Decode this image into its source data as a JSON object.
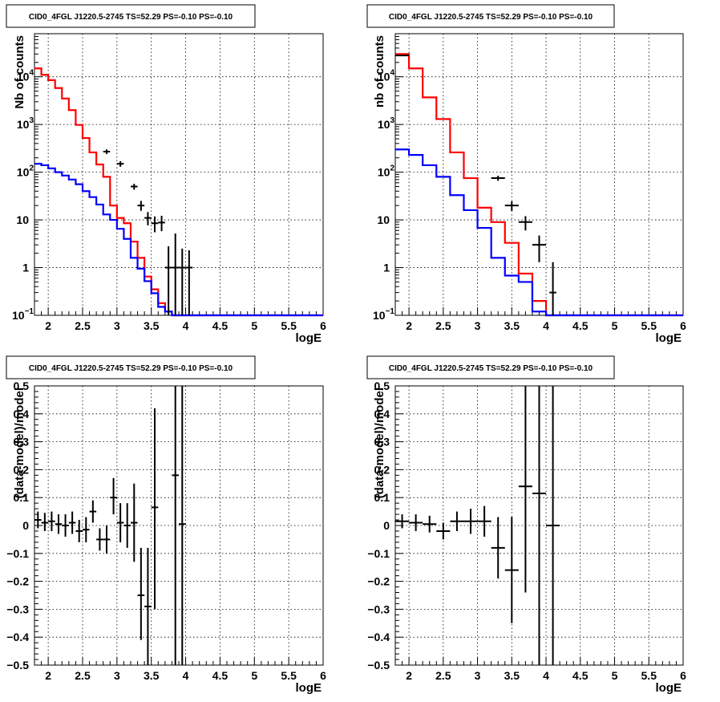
{
  "chart_data": [
    {
      "id": "p1",
      "type": "histogram",
      "title": "CID0_4FGL J1220.5-2745 TS=52.29 PS=-0.10 PS=-0.10",
      "xlabel": "logE",
      "ylabel": "Nb of counts",
      "xlim": [
        1.8,
        6
      ],
      "ylim": [
        0.1,
        80000
      ],
      "yscale": "log",
      "xticks": [
        2,
        2.5,
        3,
        3.5,
        4,
        4.5,
        5,
        5.5,
        6
      ],
      "xtick_labels": [
        "2",
        "2.5",
        "3",
        "3.5",
        "4",
        "4.5",
        "5",
        "5.5",
        "6"
      ],
      "yticks": [
        {
          "v": 0.1,
          "base": "10",
          "exp": "−1"
        },
        {
          "v": 1,
          "label": "1"
        },
        {
          "v": 10,
          "label": "10"
        },
        {
          "v": 100,
          "base": "10",
          "exp": "2"
        },
        {
          "v": 1000,
          "base": "10",
          "exp": "3"
        },
        {
          "v": 10000,
          "base": "10",
          "exp": "4"
        }
      ],
      "grid": true,
      "series": [
        {
          "color": "#ff0000",
          "bin_edges_start": 1.8,
          "bin_width": 0.1,
          "values": [
            15000,
            11000,
            8500,
            5800,
            3500,
            2000,
            980,
            520,
            260,
            145,
            80,
            20,
            11,
            8.5,
            3.5,
            1.6,
            0.65,
            0.35,
            0.18,
            0.12
          ]
        },
        {
          "color": "#0000ff",
          "bin_edges_start": 1.8,
          "bin_width": 0.1,
          "values": [
            150,
            140,
            120,
            100,
            85,
            70,
            56,
            40,
            30,
            21,
            13,
            10,
            6.5,
            4.0,
            1.6,
            0.95,
            0.52,
            0.29,
            0.15,
            0.12
          ]
        }
      ],
      "points": [
        {
          "x": 2.85,
          "y": 270,
          "xerr": 0.05,
          "ylo": 240,
          "yhi": 300
        },
        {
          "x": 3.05,
          "y": 150,
          "xerr": 0.05,
          "ylo": 130,
          "yhi": 170
        },
        {
          "x": 3.25,
          "y": 50,
          "xerr": 0.05,
          "ylo": 43,
          "yhi": 57
        },
        {
          "x": 3.35,
          "y": 20,
          "xerr": 0.05,
          "ylo": 15.5,
          "yhi": 25
        },
        {
          "x": 3.45,
          "y": 11,
          "xerr": 0.05,
          "ylo": 7.7,
          "yhi": 14.6
        },
        {
          "x": 3.55,
          "y": 8.5,
          "xerr": 0.05,
          "ylo": 5.5,
          "yhi": 11.8
        },
        {
          "x": 3.65,
          "y": 8.8,
          "xerr": 0.05,
          "ylo": 5.8,
          "yhi": 12.2
        },
        {
          "x": 3.75,
          "y": 1.0,
          "xerr": 0.05,
          "ylo": 0.1,
          "yhi": 2.8
        },
        {
          "x": 3.85,
          "y": 1.0,
          "xerr": 0.05,
          "ylo": 0.1,
          "yhi": 5.2
        },
        {
          "x": 3.95,
          "y": 1.0,
          "xerr": 0.05,
          "ylo": 0.1,
          "yhi": 2.5
        },
        {
          "x": 4.05,
          "y": 1.0,
          "xerr": 0.05,
          "ylo": 0.1,
          "yhi": 2.3
        }
      ]
    },
    {
      "id": "p2",
      "type": "histogram",
      "title": "CID0_4FGL J1220.5-2745 TS=52.29 PS=-0.10 PS=-0.10",
      "xlabel": "logE",
      "ylabel": "nb of counts",
      "xlim": [
        1.8,
        6
      ],
      "ylim": [
        0.1,
        80000
      ],
      "yscale": "log",
      "xticks": [
        2,
        2.5,
        3,
        3.5,
        4,
        4.5,
        5,
        5.5,
        6
      ],
      "xtick_labels": [
        "2",
        "2.5",
        "3",
        "3.5",
        "4",
        "4.5",
        "5",
        "5.5",
        "6"
      ],
      "yticks": [
        {
          "v": 0.1,
          "base": "10",
          "exp": "−1"
        },
        {
          "v": 1,
          "label": "1"
        },
        {
          "v": 10,
          "label": "10"
        },
        {
          "v": 100,
          "base": "10",
          "exp": "2"
        },
        {
          "v": 1000,
          "base": "10",
          "exp": "3"
        },
        {
          "v": 10000,
          "base": "10",
          "exp": "4"
        }
      ],
      "grid": true,
      "series": [
        {
          "color": "#ff0000",
          "bin_edges_start": 1.8,
          "bin_width": 0.2,
          "values": [
            30000,
            15000,
            3700,
            1300,
            260,
            75,
            18,
            9,
            3.3,
            0.75,
            0.2
          ]
        },
        {
          "color": "#0000ff",
          "bin_edges_start": 1.8,
          "bin_width": 0.2,
          "values": [
            300,
            230,
            140,
            80,
            33,
            16,
            6.8,
            1.6,
            0.68,
            0.5,
            0.12
          ]
        }
      ],
      "points": [
        {
          "x": 1.9,
          "y": 28000,
          "xerr": 0.1,
          "ylo": 27000,
          "yhi": 29000
        },
        {
          "x": 3.3,
          "y": 75,
          "xerr": 0.1,
          "ylo": 66,
          "yhi": 84
        },
        {
          "x": 3.5,
          "y": 20,
          "xerr": 0.1,
          "ylo": 15.5,
          "yhi": 24.5
        },
        {
          "x": 3.7,
          "y": 9,
          "xerr": 0.1,
          "ylo": 6,
          "yhi": 12
        },
        {
          "x": 3.9,
          "y": 3.0,
          "xerr": 0.1,
          "ylo": 1.3,
          "yhi": 4.7
        },
        {
          "x": 4.1,
          "y": 0.3,
          "xerr": 0.05,
          "ylo": 0.1,
          "yhi": 1.3
        }
      ]
    },
    {
      "id": "p3",
      "type": "scatter",
      "title": "CID0_4FGL J1220.5-2745 TS=52.29 PS=-0.10 PS=-0.10",
      "xlabel": "logE",
      "ylabel": "(data-model)/model",
      "xlim": [
        1.8,
        6
      ],
      "ylim": [
        -0.5,
        0.5
      ],
      "yscale": "linear",
      "xticks": [
        2,
        2.5,
        3,
        3.5,
        4,
        4.5,
        5,
        5.5,
        6
      ],
      "xtick_labels": [
        "2",
        "2.5",
        "3",
        "3.5",
        "4",
        "4.5",
        "5",
        "5.5",
        "6"
      ],
      "yticks": [
        {
          "v": -0.5,
          "label": "−0.5"
        },
        {
          "v": -0.4,
          "label": "−0.4"
        },
        {
          "v": -0.3,
          "label": "−0.3"
        },
        {
          "v": -0.2,
          "label": "−0.2"
        },
        {
          "v": -0.1,
          "label": "−0.1"
        },
        {
          "v": 0,
          "label": "0"
        },
        {
          "v": 0.1,
          "label": "0.1"
        },
        {
          "v": 0.2,
          "label": "0.2"
        },
        {
          "v": 0.3,
          "label": "0.3"
        },
        {
          "v": 0.4,
          "label": "0.4"
        },
        {
          "v": 0.5,
          "label": "0.5"
        }
      ],
      "grid": true,
      "points": [
        {
          "x": 1.85,
          "y": 0.02,
          "xerr": 0.05,
          "ylo": -0.01,
          "yhi": 0.05
        },
        {
          "x": 1.95,
          "y": 0.01,
          "xerr": 0.05,
          "ylo": -0.02,
          "yhi": 0.045
        },
        {
          "x": 2.05,
          "y": 0.015,
          "xerr": 0.05,
          "ylo": -0.02,
          "yhi": 0.05
        },
        {
          "x": 2.15,
          "y": 0.005,
          "xerr": 0.05,
          "ylo": -0.03,
          "yhi": 0.04
        },
        {
          "x": 2.25,
          "y": 0.0,
          "xerr": 0.05,
          "ylo": -0.04,
          "yhi": 0.04
        },
        {
          "x": 2.35,
          "y": 0.01,
          "xerr": 0.05,
          "ylo": -0.03,
          "yhi": 0.05
        },
        {
          "x": 2.45,
          "y": -0.02,
          "xerr": 0.05,
          "ylo": -0.06,
          "yhi": 0.02
        },
        {
          "x": 2.55,
          "y": -0.015,
          "xerr": 0.05,
          "ylo": -0.06,
          "yhi": 0.03
        },
        {
          "x": 2.65,
          "y": 0.05,
          "xerr": 0.05,
          "ylo": 0.01,
          "yhi": 0.09
        },
        {
          "x": 2.75,
          "y": -0.05,
          "xerr": 0.05,
          "ylo": -0.09,
          "yhi": -0.01
        },
        {
          "x": 2.85,
          "y": -0.05,
          "xerr": 0.05,
          "ylo": -0.1,
          "yhi": 0.0
        },
        {
          "x": 2.95,
          "y": 0.1,
          "xerr": 0.05,
          "ylo": 0.04,
          "yhi": 0.17
        },
        {
          "x": 3.05,
          "y": 0.01,
          "xerr": 0.05,
          "ylo": -0.06,
          "yhi": 0.08
        },
        {
          "x": 3.15,
          "y": 0.0,
          "xerr": 0.05,
          "ylo": -0.08,
          "yhi": 0.08
        },
        {
          "x": 3.25,
          "y": 0.01,
          "xerr": 0.05,
          "ylo": -0.13,
          "yhi": 0.15
        },
        {
          "x": 3.35,
          "y": -0.25,
          "xerr": 0.05,
          "ylo": -0.41,
          "yhi": -0.08
        },
        {
          "x": 3.45,
          "y": -0.29,
          "xerr": 0.05,
          "ylo": -0.5,
          "yhi": -0.08
        },
        {
          "x": 3.55,
          "y": 0.065,
          "xerr": 0.05,
          "ylo": -0.3,
          "yhi": 0.42
        },
        {
          "x": 3.85,
          "y": 0.18,
          "xerr": 0.05,
          "ylo": -0.5,
          "yhi": 0.5
        },
        {
          "x": 3.95,
          "y": 0.005,
          "xerr": 0.05,
          "ylo": -0.5,
          "yhi": 0.5
        }
      ]
    },
    {
      "id": "p4",
      "type": "scatter",
      "title": "CID0_4FGL J1220.5-2745 TS=52.29 PS=-0.10 PS=-0.10",
      "xlabel": "logE",
      "ylabel": "(data-model)/model",
      "xlim": [
        1.8,
        6
      ],
      "ylim": [
        -0.5,
        0.5
      ],
      "yscale": "linear",
      "xticks": [
        2,
        2.5,
        3,
        3.5,
        4,
        4.5,
        5,
        5.5,
        6
      ],
      "xtick_labels": [
        "2",
        "2.5",
        "3",
        "3.5",
        "4",
        "4.5",
        "5",
        "5.5",
        "6"
      ],
      "yticks": [
        {
          "v": -0.5,
          "label": "−0.5"
        },
        {
          "v": -0.4,
          "label": "−0.4"
        },
        {
          "v": -0.3,
          "label": "−0.3"
        },
        {
          "v": -0.2,
          "label": "−0.2"
        },
        {
          "v": -0.1,
          "label": "−0.1"
        },
        {
          "v": 0,
          "label": "0"
        },
        {
          "v": 0.1,
          "label": "0.1"
        },
        {
          "v": 0.2,
          "label": "0.2"
        },
        {
          "v": 0.3,
          "label": "0.3"
        },
        {
          "v": 0.4,
          "label": "0.4"
        },
        {
          "v": 0.5,
          "label": "0.5"
        }
      ],
      "grid": true,
      "points": [
        {
          "x": 1.9,
          "y": 0.015,
          "xerr": 0.1,
          "ylo": -0.01,
          "yhi": 0.04
        },
        {
          "x": 2.1,
          "y": 0.01,
          "xerr": 0.1,
          "ylo": -0.02,
          "yhi": 0.04
        },
        {
          "x": 2.3,
          "y": 0.005,
          "xerr": 0.1,
          "ylo": -0.025,
          "yhi": 0.035
        },
        {
          "x": 2.5,
          "y": -0.02,
          "xerr": 0.1,
          "ylo": -0.05,
          "yhi": 0.01
        },
        {
          "x": 2.7,
          "y": 0.015,
          "xerr": 0.1,
          "ylo": -0.02,
          "yhi": 0.05
        },
        {
          "x": 2.9,
          "y": 0.015,
          "xerr": 0.1,
          "ylo": -0.03,
          "yhi": 0.06
        },
        {
          "x": 3.1,
          "y": 0.015,
          "xerr": 0.1,
          "ylo": -0.04,
          "yhi": 0.07
        },
        {
          "x": 3.3,
          "y": -0.08,
          "xerr": 0.1,
          "ylo": -0.19,
          "yhi": 0.03
        },
        {
          "x": 3.5,
          "y": -0.16,
          "xerr": 0.1,
          "ylo": -0.35,
          "yhi": 0.03
        },
        {
          "x": 3.7,
          "y": 0.14,
          "xerr": 0.1,
          "ylo": -0.24,
          "yhi": 0.5
        },
        {
          "x": 3.9,
          "y": 0.115,
          "xerr": 0.1,
          "ylo": -0.5,
          "yhi": 0.5
        },
        {
          "x": 4.1,
          "y": 0.0,
          "xerr": 0.1,
          "ylo": -0.5,
          "yhi": 0.5
        }
      ]
    }
  ]
}
